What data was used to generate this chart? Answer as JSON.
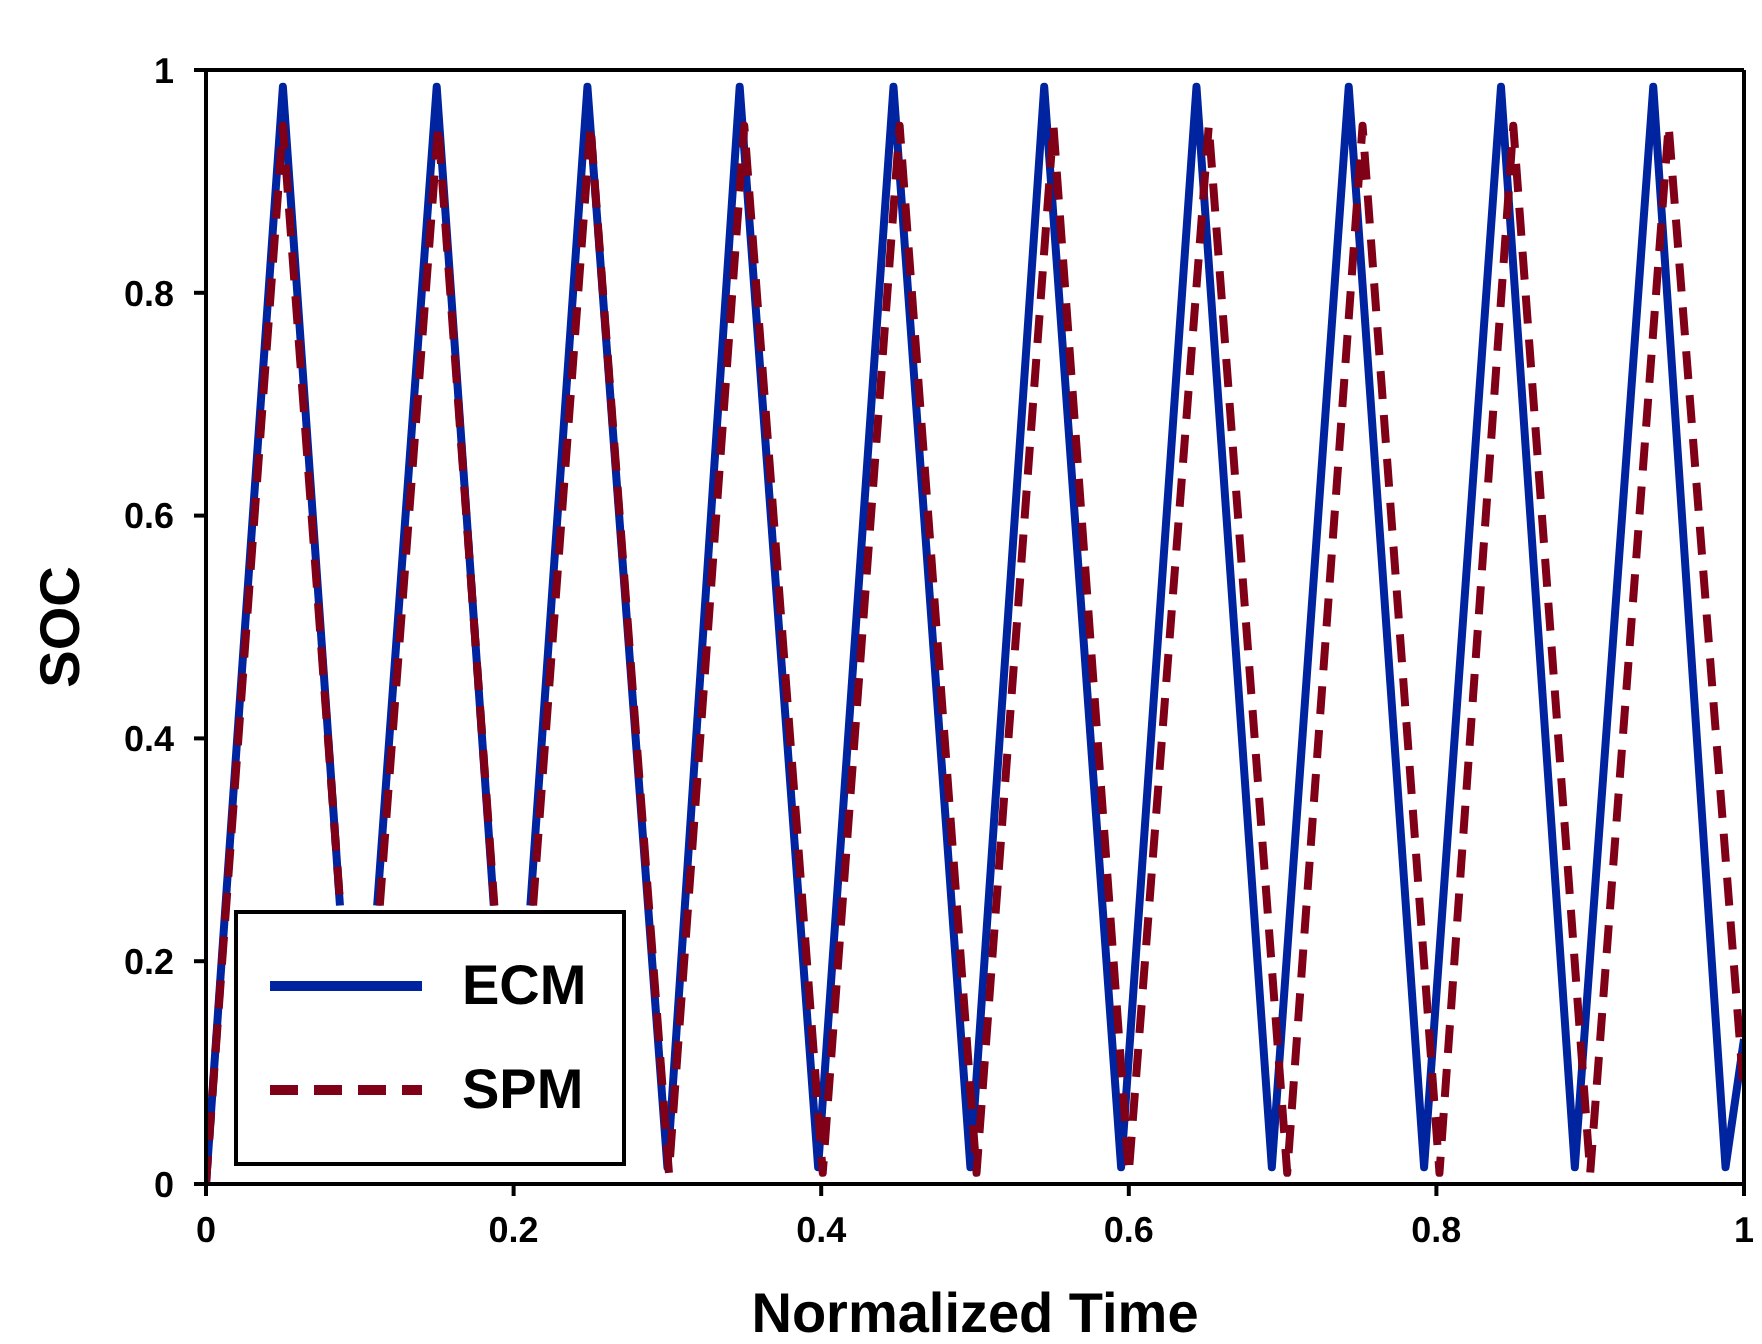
{
  "chart_data": {
    "type": "line",
    "xlabel": "Normalized Time",
    "ylabel": "SOC",
    "xlim": [
      0,
      1
    ],
    "xticks": [
      0,
      0.2,
      0.4,
      0.6,
      0.8,
      1
    ],
    "ylim": [
      0,
      1
    ],
    "yticks": [
      0,
      0.2,
      0.4,
      0.6,
      0.8,
      1
    ],
    "grid": false,
    "legend": "bottom left",
    "marker": "none",
    "series": [
      {
        "name": "ECM",
        "color": "#0024a0",
        "line_style": "solid",
        "x": [
          0,
          0.05,
          0.0871,
          null,
          0.1113,
          0.15,
          0.1871,
          null,
          0.2109,
          0.248,
          0.3,
          0.347,
          0.398,
          0.447,
          0.497,
          0.545,
          0.595,
          0.644,
          0.693,
          0.743,
          0.792,
          0.842,
          0.89,
          0.941,
          0.988,
          1
        ],
        "values": [
          0,
          0.985,
          0.25,
          null,
          0.25,
          0.985,
          0.25,
          null,
          0.25,
          0.985,
          0.015,
          0.985,
          0.015,
          0.985,
          0.015,
          0.985,
          0.015,
          0.985,
          0.015,
          0.985,
          0.015,
          0.985,
          0.015,
          0.985,
          0.015,
          0.13
        ]
      },
      {
        "name": "SPM",
        "color": "#800018",
        "line_style": "dashed",
        "x": [
          0,
          0.05,
          0.0873,
          null,
          0.113,
          0.151,
          0.1875,
          null,
          0.2127,
          0.25,
          0.301,
          0.35,
          0.401,
          0.451,
          0.501,
          0.551,
          0.6,
          0.652,
          0.703,
          0.752,
          0.802,
          0.85,
          0.9,
          0.951,
          1
        ],
        "values": [
          0,
          0.95,
          0.25,
          null,
          0.25,
          0.95,
          0.25,
          null,
          0.25,
          0.95,
          0.01,
          0.95,
          0.01,
          0.95,
          0.01,
          0.95,
          0.01,
          0.95,
          0.01,
          0.95,
          0.01,
          0.95,
          0.01,
          0.95,
          0.08
        ]
      }
    ]
  }
}
